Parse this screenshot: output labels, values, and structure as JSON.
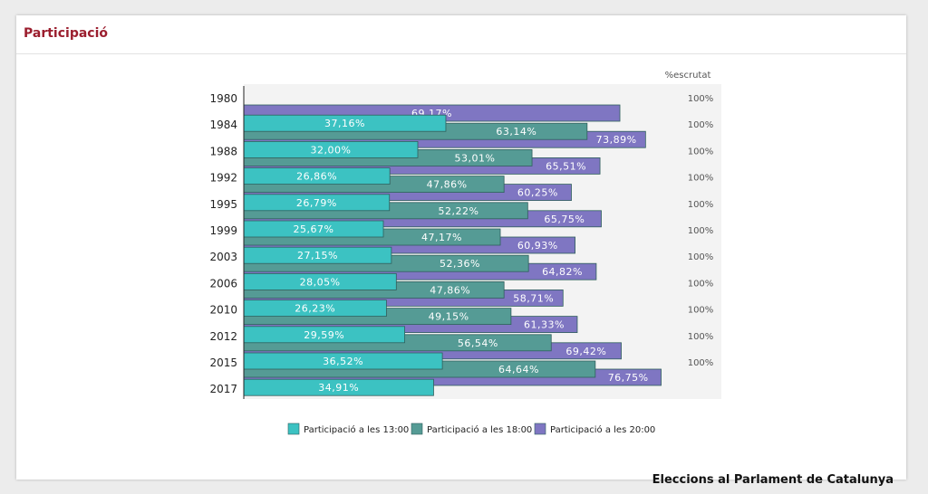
{
  "card": {
    "title": "Participació"
  },
  "footer": {
    "caption": "Eleccions al Parlament de Catalunya"
  },
  "chart_data": {
    "type": "bar",
    "orientation": "horizontal",
    "categories": [
      "1980",
      "1984",
      "1988",
      "1992",
      "1995",
      "1999",
      "2003",
      "2006",
      "2010",
      "2012",
      "2015",
      "2017"
    ],
    "series": [
      {
        "name": "Participació a les 13:00",
        "color": "#3cc2c2",
        "values": [
          null,
          37.16,
          32.0,
          26.86,
          26.79,
          25.67,
          27.15,
          28.05,
          26.23,
          29.59,
          36.52,
          34.91
        ],
        "labels": [
          "",
          "37,16%",
          "32,00%",
          "26,86%",
          "26,79%",
          "25,67%",
          "27,15%",
          "28,05%",
          "26,23%",
          "29,59%",
          "36,52%",
          "34,91%"
        ]
      },
      {
        "name": "Participació a les 18:00",
        "color": "#559b95",
        "values": [
          null,
          63.14,
          53.01,
          47.86,
          52.22,
          47.17,
          52.36,
          47.86,
          49.15,
          56.54,
          64.64,
          null
        ],
        "labels": [
          "",
          "63,14%",
          "53,01%",
          "47,86%",
          "52,22%",
          "47,17%",
          "52,36%",
          "47,86%",
          "49,15%",
          "56,54%",
          "64,64%",
          ""
        ]
      },
      {
        "name": "Participació a les 20:00",
        "color": "#7f76c2",
        "values": [
          69.17,
          73.89,
          65.51,
          60.25,
          65.75,
          60.93,
          64.82,
          58.71,
          61.33,
          69.42,
          76.75,
          null
        ],
        "labels": [
          "69,17%",
          "73,89%",
          "65,51%",
          "60,25%",
          "65,75%",
          "60,93%",
          "64,82%",
          "58,71%",
          "61,33%",
          "69,42%",
          "76,75%",
          ""
        ]
      }
    ],
    "scrutiny": {
      "header": "%escrutat",
      "values": [
        "100%",
        "100%",
        "100%",
        "100%",
        "100%",
        "100%",
        "100%",
        "100%",
        "100%",
        "100%",
        "100%",
        ""
      ]
    },
    "legend_position": "bottom-center",
    "grid": false
  }
}
